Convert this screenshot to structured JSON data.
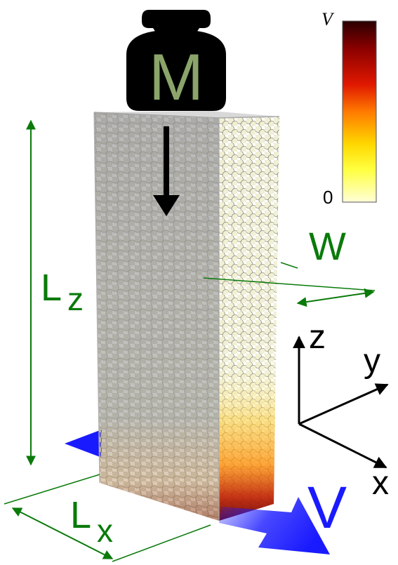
{
  "weight": {
    "label": "M"
  },
  "dimensions": {
    "height_label": "L",
    "height_sub": "z",
    "length_label": "L",
    "length_sub": "x",
    "width_label": "W"
  },
  "velocity": {
    "label": "V"
  },
  "axes": {
    "x": "x",
    "y": "y",
    "z": "z"
  },
  "colorbar": {
    "max_label": "V",
    "min_label": "0",
    "stops": [
      "#2a0000",
      "#8a0000",
      "#e01800",
      "#ff7a00",
      "#ffd800",
      "#ffff40",
      "#ffffd8"
    ]
  },
  "colors": {
    "dimension": "#0a7a0a",
    "velocity_arrow": "#1a1aff",
    "weight_body": "#000000",
    "weight_letter": "#8aa46a"
  }
}
